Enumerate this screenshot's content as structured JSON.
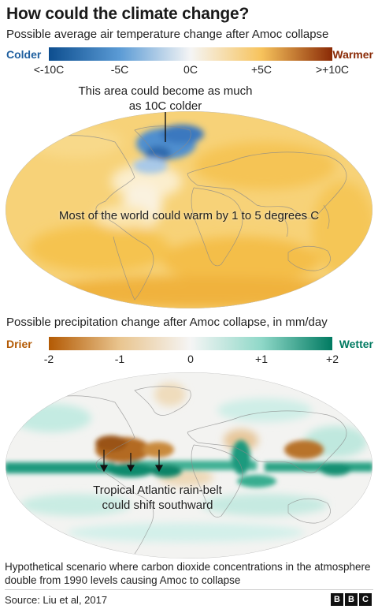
{
  "title": "How could the climate change?",
  "temperature": {
    "subtitle": "Possible average air temperature change after Amoc collapse",
    "scale_left_label": "Colder",
    "scale_right_label": "Warmer",
    "ticks": [
      "<-10C",
      "-5C",
      "0C",
      "+5C",
      ">+10C"
    ],
    "colors": [
      "#0d4e8f",
      "#5b9bd5",
      "#f5f5f5",
      "#f7c35c",
      "#8a2a06"
    ],
    "annotation_top": "This area could become as much as 10C colder",
    "annotation_top_line1": "This area could become as much",
    "annotation_top_line2": "as 10C colder",
    "annotation_center": "Most of the world could warm by 1 to 5 degrees C"
  },
  "precipitation": {
    "subtitle": "Possible precipitation change after Amoc collapse, in mm/day",
    "scale_left_label": "Drier",
    "scale_right_label": "Wetter",
    "ticks": [
      "-2",
      "-1",
      "0",
      "+1",
      "+2"
    ],
    "colors": [
      "#b35a04",
      "#e9c58f",
      "#f5f5f5",
      "#8fd8c8",
      "#007a61"
    ],
    "annotation_line1": "Tropical Atlantic rain-belt",
    "annotation_line2": "could shift southward"
  },
  "footnote": "Hypothetical scenario where carbon dioxide concentrations in the atmosphere double from 1990 levels causing Amoc to collapse",
  "source": "Source: Liu et al, 2017",
  "brand": [
    "B",
    "B",
    "C"
  ]
}
